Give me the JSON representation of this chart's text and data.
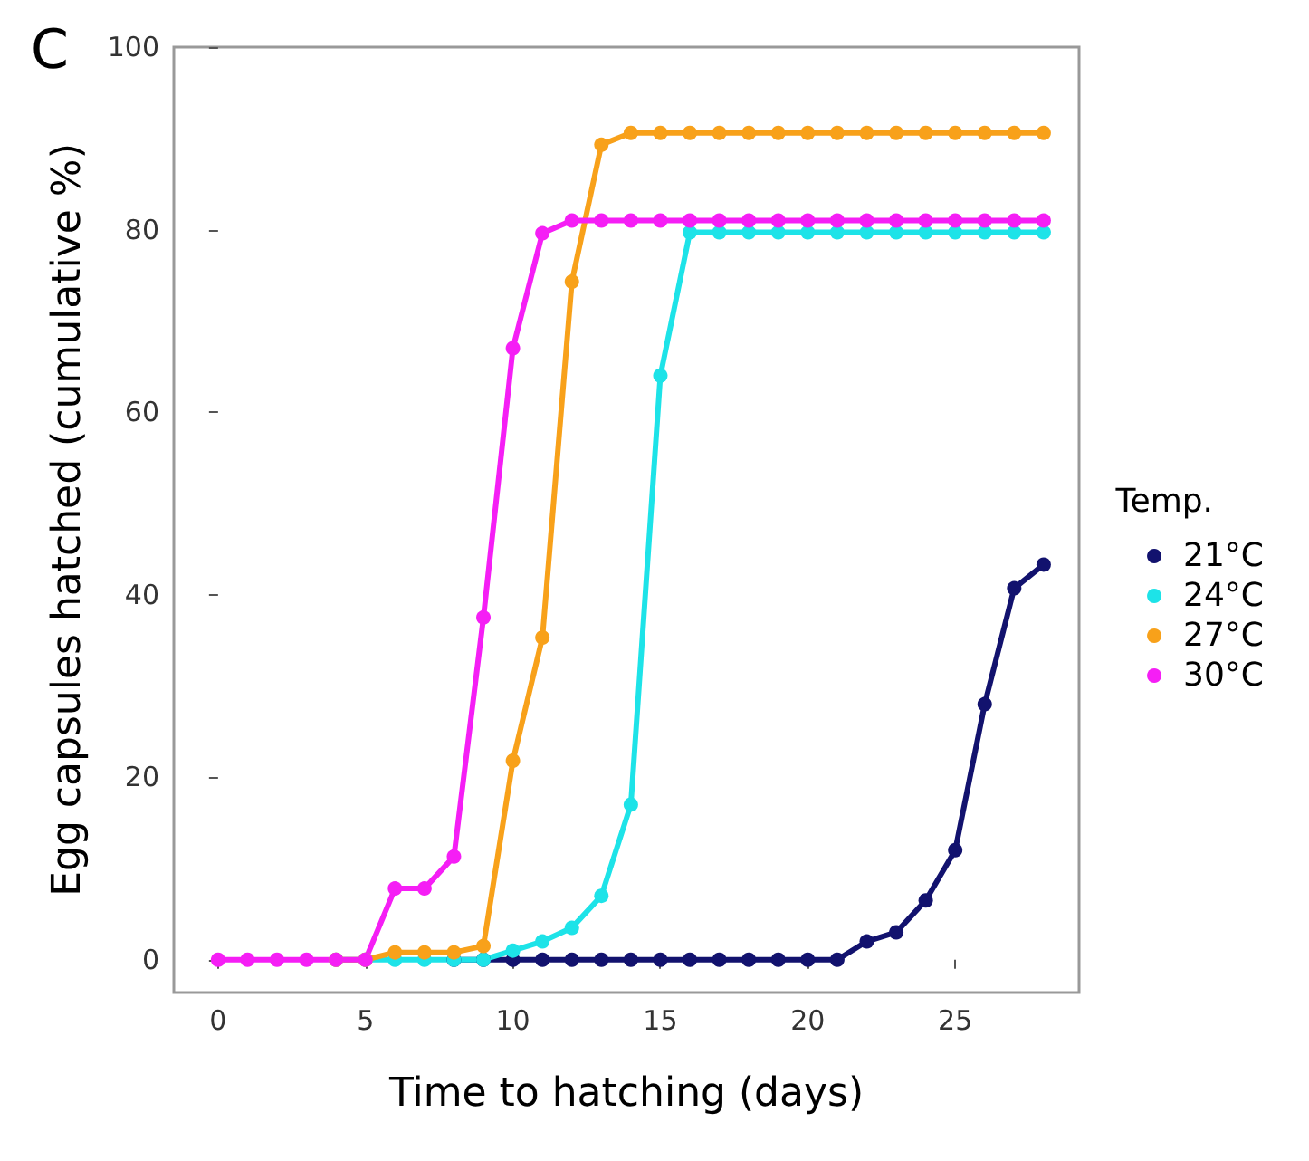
{
  "chart_data": {
    "type": "line",
    "title": "C",
    "xlabel": "Time to hatching (days)",
    "ylabel": "Egg capsules hatched (cumulative %)",
    "legend_title": "Temp.",
    "x": [
      0,
      1,
      2,
      3,
      4,
      5,
      6,
      7,
      8,
      9,
      10,
      11,
      12,
      13,
      14,
      15,
      16,
      17,
      18,
      19,
      20,
      21,
      22,
      23,
      24,
      25,
      26,
      27,
      28
    ],
    "series": [
      {
        "name": "21°C",
        "color": "#12126e",
        "values": [
          null,
          null,
          null,
          null,
          null,
          null,
          null,
          null,
          0,
          0,
          0,
          0,
          0,
          0,
          0,
          0,
          0,
          0,
          0,
          0,
          0,
          0,
          2,
          3,
          6.5,
          12,
          28,
          40.7,
          43.3
        ]
      },
      {
        "name": "24°C",
        "color": "#1de3e8",
        "values": [
          null,
          null,
          null,
          null,
          0,
          0,
          0,
          0,
          0,
          0,
          1,
          2,
          3.5,
          7,
          17,
          64,
          79.7,
          79.7,
          79.7,
          79.7,
          79.7,
          79.7,
          79.7,
          79.7,
          79.7,
          79.7,
          79.7,
          79.7,
          79.7
        ]
      },
      {
        "name": "27°C",
        "color": "#f8a11a",
        "values": [
          null,
          null,
          null,
          null,
          0,
          0,
          0.8,
          0.8,
          0.8,
          1.5,
          21.8,
          35.3,
          74.3,
          89.3,
          90.6,
          90.6,
          90.6,
          90.6,
          90.6,
          90.6,
          90.6,
          90.6,
          90.6,
          90.6,
          90.6,
          90.6,
          90.6,
          90.6,
          90.6
        ]
      },
      {
        "name": "30°C",
        "color": "#f51ef5",
        "values": [
          0,
          0,
          0,
          0,
          0,
          0,
          7.8,
          7.8,
          11.3,
          37.5,
          67,
          79.6,
          81,
          81,
          81,
          81,
          81,
          81,
          81,
          81,
          81,
          81,
          81,
          81,
          81,
          81,
          81,
          81,
          81
        ]
      }
    ],
    "xlim": [
      -1.5,
      29.2
    ],
    "xticks": [
      0,
      5,
      10,
      15,
      20,
      25
    ],
    "ylim": [
      -3.6,
      100
    ],
    "yticks": [
      0,
      20,
      40,
      60,
      80,
      100
    ],
    "grid": false,
    "legend": "right",
    "marker": "circle",
    "line_style": "solid"
  }
}
